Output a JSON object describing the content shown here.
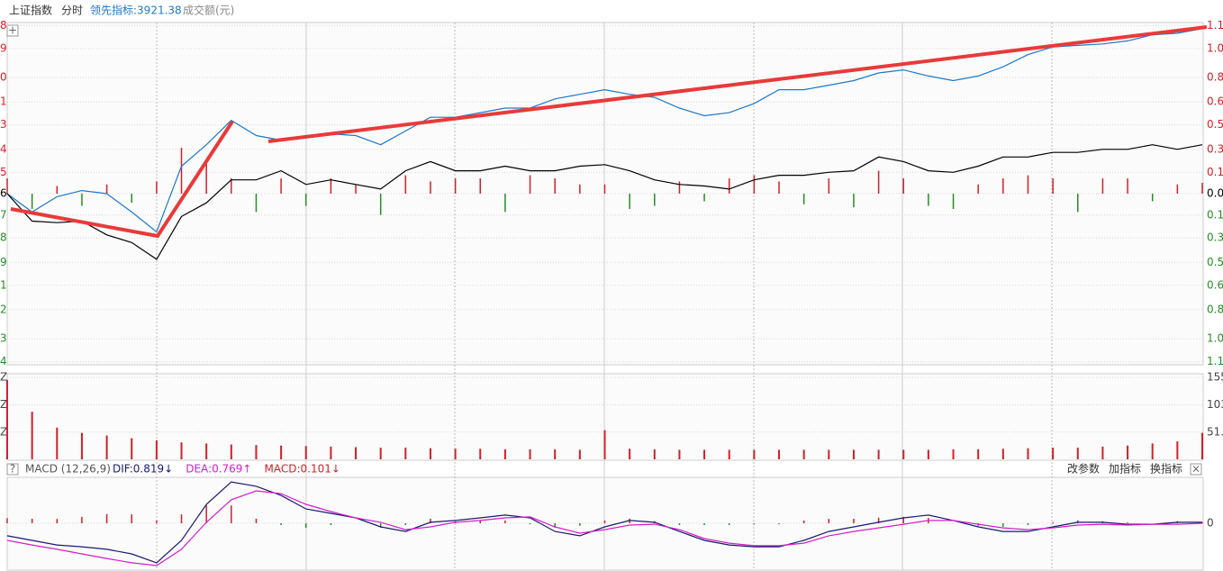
{
  "chart_data": [
    {
      "type": "line",
      "title": "上证指数",
      "subtitle": "分时",
      "indicator": "领先指标:3921.38",
      "volume_label": "成交额(元)",
      "ylim": [
        -1.12,
        1.12
      ],
      "yticks": [
        {
          "value": 1.1,
          "label": "1.1"
        },
        {
          "value": 0.95,
          "label": "1.0"
        },
        {
          "value": 0.76,
          "label": "0.8"
        },
        {
          "value": 0.6,
          "label": "0.6"
        },
        {
          "value": 0.45,
          "label": "0.5"
        },
        {
          "value": 0.29,
          "label": "0.3"
        },
        {
          "value": 0.14,
          "label": "0.1"
        },
        {
          "value": 0,
          "label": "0.0"
        },
        {
          "value": -0.14,
          "label": "0.1"
        },
        {
          "value": -0.29,
          "label": "0.3"
        },
        {
          "value": -0.45,
          "label": "0.5"
        },
        {
          "value": -0.6,
          "label": "0.6"
        },
        {
          "value": -0.76,
          "label": "0.8"
        },
        {
          "value": -0.95,
          "label": "1.0"
        },
        {
          "value": -1.1,
          "label": "1.1"
        }
      ],
      "y_left_labels": [
        "8",
        "9",
        "0",
        "1",
        "3",
        "4",
        "5",
        "6",
        "7",
        "8",
        "9",
        "1",
        "2",
        "3",
        "4"
      ],
      "grid": true,
      "series": [
        {
          "color": "#1f78c8",
          "values": [
            0,
            -0.12,
            -0.02,
            0.02,
            0,
            -0.12,
            -0.25,
            0.18,
            0.32,
            0.48,
            0.38,
            0.35,
            0.38,
            0.39,
            0.38,
            0.32,
            0.41,
            0.5,
            0.5,
            0.53,
            0.56,
            0.56,
            0.62,
            0.65,
            0.68,
            0.65,
            0.63,
            0.56,
            0.51,
            0.53,
            0.59,
            0.68,
            0.68,
            0.71,
            0.74,
            0.79,
            0.81,
            0.77,
            0.74,
            0.77,
            0.83,
            0.91,
            0.96,
            0.97,
            0.98,
            1.0,
            1.04,
            1.05,
            1.08
          ]
        },
        {
          "color": "#000000",
          "values": [
            0,
            -0.18,
            -0.19,
            -0.18,
            -0.27,
            -0.32,
            -0.43,
            -0.15,
            -0.06,
            0.09,
            0.09,
            0.15,
            0.06,
            0.09,
            0.06,
            0.03,
            0.15,
            0.21,
            0.15,
            0.15,
            0.18,
            0.15,
            0.15,
            0.18,
            0.19,
            0.15,
            0.09,
            0.06,
            0.05,
            0.03,
            0.09,
            0.12,
            0.12,
            0.14,
            0.15,
            0.24,
            0.21,
            0.15,
            0.14,
            0.18,
            0.24,
            0.24,
            0.27,
            0.27,
            0.29,
            0.29,
            0.32,
            0.29,
            0.32
          ]
        }
      ],
      "bars": [
        0.1,
        -0.1,
        0.05,
        -0.08,
        0.06,
        -0.06,
        0.08,
        0.3,
        0.2,
        0.1,
        -0.12,
        0.1,
        -0.08,
        0.1,
        0.06,
        -0.14,
        0.12,
        0.08,
        0.1,
        0.1,
        -0.12,
        0.12,
        0.1,
        0.06,
        0.06,
        -0.1,
        -0.08,
        0.08,
        -0.05,
        0.1,
        0.12,
        0.08,
        -0.07,
        0.1,
        -0.09,
        0.15,
        0.1,
        -0.08,
        -0.1,
        0.06,
        0.1,
        0.12,
        0.1,
        -0.12,
        0.1,
        0.1,
        -0.05,
        0.06,
        0.07
      ],
      "up_color": "#d0202a",
      "down_color": "#2a8a2a"
    },
    {
      "type": "bar",
      "ylim": [
        0,
        155
      ],
      "yticks": [
        155,
        103,
        {
          "value": 51.5,
          "label": "51."
        }
      ],
      "y_left_labels": [
        "Z",
        "Z",
        "Z"
      ],
      "color": "#d0202a",
      "values": [
        150,
        90,
        60,
        50,
        45,
        40,
        36,
        32,
        30,
        28,
        27,
        26,
        25,
        24,
        23,
        22,
        22,
        21,
        20,
        20,
        19,
        19,
        19,
        18,
        55,
        20,
        19,
        18,
        18,
        18,
        18,
        18,
        18,
        18,
        18,
        18,
        18,
        18,
        19,
        19,
        20,
        21,
        22,
        22,
        24,
        26,
        30,
        34,
        50
      ]
    },
    {
      "type": "macd",
      "title": "MACD (12,26,9)",
      "buttons": [
        "改参数",
        "加指标",
        "换指标"
      ],
      "ylim": [
        -1.8,
        1.8
      ],
      "yticks": [
        0
      ],
      "series": [
        {
          "name": "DIF:0.819↓",
          "color": "#1a1a6e",
          "values": [
            -0.49,
            -0.67,
            -0.85,
            -0.92,
            -1.02,
            -1.2,
            -1.55,
            -0.67,
            0.74,
            1.62,
            1.45,
            1.09,
            0.56,
            0.39,
            0.21,
            -0.14,
            -0.32,
            0.04,
            0.11,
            0.21,
            0.32,
            0.21,
            -0.32,
            -0.49,
            -0.14,
            0.11,
            0.04,
            -0.32,
            -0.67,
            -0.85,
            -0.92,
            -0.92,
            -0.67,
            -0.32,
            -0.14,
            0.04,
            0.21,
            0.32,
            0.11,
            -0.14,
            -0.32,
            -0.32,
            -0.14,
            0.04,
            0.04,
            -0.04,
            -0.04,
            0.04,
            0.04
          ]
        },
        {
          "name": "DEA:0.769↑",
          "color": "#d020c8",
          "values": [
            -0.67,
            -0.85,
            -1.02,
            -1.2,
            -1.38,
            -1.55,
            -1.66,
            -1.02,
            0.04,
            0.92,
            1.27,
            1.16,
            0.74,
            0.46,
            0.21,
            0.04,
            -0.25,
            -0.14,
            0.04,
            0.11,
            0.21,
            0.25,
            -0.14,
            -0.39,
            -0.25,
            -0.07,
            -0.04,
            -0.25,
            -0.6,
            -0.78,
            -0.88,
            -0.88,
            -0.78,
            -0.49,
            -0.32,
            -0.18,
            -0.04,
            0.11,
            0.11,
            -0.04,
            -0.18,
            -0.25,
            -0.18,
            -0.07,
            -0.04,
            -0.07,
            -0.04,
            -0.04,
            0
          ]
        },
        {
          "name": "MACD:0.101↓",
          "color": "#d0202a",
          "values": [
            0.2,
            0.18,
            0.17,
            0.25,
            0.36,
            0.35,
            0.11,
            0.35,
            0.7,
            0.7,
            0.18,
            -0.07,
            -0.18,
            -0.07,
            0,
            -0.18,
            -0.07,
            0.18,
            0.07,
            0.1,
            0.11,
            -0.04,
            -0.18,
            -0.1,
            0.11,
            0.18,
            0.08,
            -0.07,
            -0.07,
            -0.07,
            -0.04,
            -0.04,
            0.11,
            0.17,
            0.18,
            0.22,
            0.25,
            0.21,
            0,
            -0.1,
            -0.14,
            -0.07,
            0.04,
            0.11,
            0.08,
            0.03,
            0,
            0.08,
            0.04
          ]
        }
      ],
      "down_color": "#2a8a2a"
    }
  ]
}
